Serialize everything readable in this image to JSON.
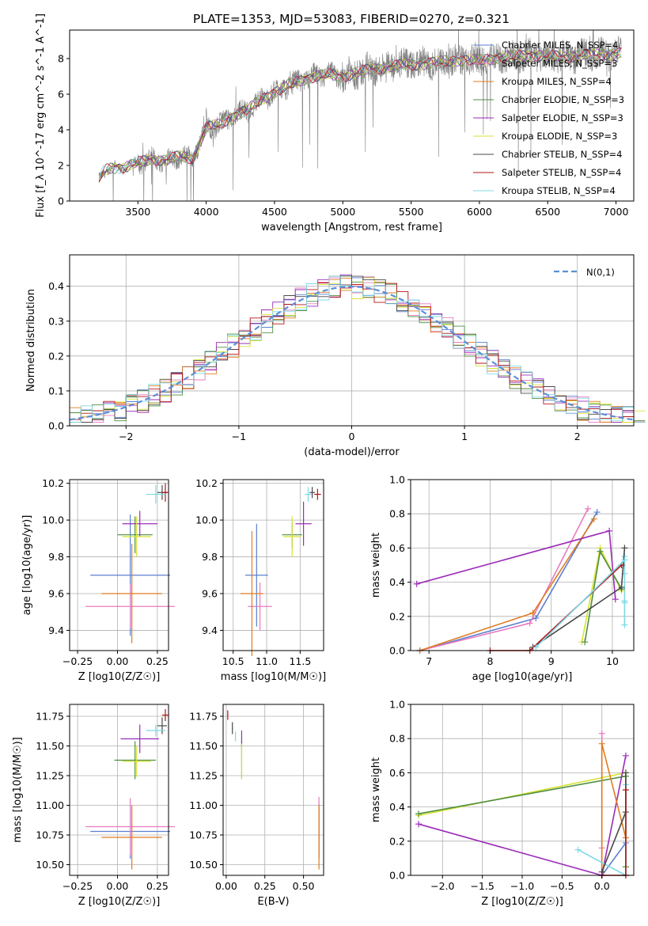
{
  "title": "PLATE=1353, MJD=53083, FIBERID=0270, z=0.321",
  "panels": {
    "spectrum": {
      "xlabel": "wavelength [Angstrom, rest frame]",
      "ylabel": "Flux [f_λ 10^-17 erg cm^-2 s^-1 A^-1]",
      "xticks": [
        "3500",
        "4000",
        "4500",
        "5000",
        "5500",
        "6000",
        "6500",
        "7000"
      ],
      "yticks": [
        "0",
        "2",
        "4",
        "6",
        "8"
      ]
    },
    "residuals": {
      "xlabel": "(data-model)/error",
      "ylabel": "Normed distribution",
      "legend": "N(0,1)",
      "xticks": [
        "−2",
        "−1",
        "0",
        "1",
        "2"
      ],
      "yticks": [
        "0.0",
        "0.1",
        "0.2",
        "0.3",
        "0.4"
      ]
    },
    "age_vs_Z": {
      "xlabel": "Z [log10(Z/Z☉)]",
      "ylabel": "age [log10(age/yr)]",
      "xticks": [
        "−0.25",
        "0.00",
        "0.25"
      ],
      "yticks": [
        "9.4",
        "9.6",
        "9.8",
        "10.0",
        "10.2"
      ]
    },
    "age_vs_mass": {
      "xlabel": "mass [log10(M/M☉)]",
      "xticks": [
        "10.5",
        "11.0",
        "11.5"
      ],
      "yticks": [
        "9.4",
        "9.6",
        "9.8",
        "10.0",
        "10.2"
      ]
    },
    "weight_vs_age": {
      "xlabel": "age [log10(age/yr)]",
      "ylabel": "mass weight",
      "xticks": [
        "7",
        "8",
        "9",
        "10"
      ],
      "yticks": [
        "0.0",
        "0.2",
        "0.4",
        "0.6",
        "0.8",
        "1.0"
      ]
    },
    "mass_vs_Z": {
      "xlabel": "Z [log10(Z/Z☉)]",
      "ylabel": "mass [log10(M/M☉)]",
      "xticks": [
        "−0.25",
        "0.00",
        "0.25"
      ],
      "yticks": [
        "10.50",
        "10.75",
        "11.00",
        "11.25",
        "11.50",
        "11.75"
      ]
    },
    "mass_vs_ebv": {
      "xlabel": "E(B-V)",
      "xticks": [
        "0.00",
        "0.25",
        "0.50"
      ],
      "yticks": [
        "10.50",
        "10.75",
        "11.00",
        "11.25",
        "11.50",
        "11.75"
      ]
    },
    "weight_vs_Z": {
      "xlabel": "Z [log10(Z/Z☉)]",
      "ylabel": "mass weight",
      "xticks": [
        "−2.0",
        "−1.5",
        "−1.0",
        "−0.5",
        "0.0"
      ],
      "yticks": [
        "0.0",
        "0.2",
        "0.4",
        "0.6",
        "0.8",
        "1.0"
      ]
    }
  },
  "colors": {
    "data": "#808080",
    "gaussian": "#5a8fd6",
    "grid": "#b0b0b0"
  },
  "chart_data": [
    {
      "type": "line",
      "panel": "spectrum",
      "title": "PLATE=1353, MJD=53083, FIBERID=0270, z=0.321",
      "xlabel": "wavelength [Angstrom, rest frame]",
      "ylabel": "Flux [f_λ 10^-17 erg cm^-2 s^-1 A^-1]",
      "xlim": [
        3000,
        7130
      ],
      "ylim": [
        0,
        9.6
      ],
      "grid": false,
      "legend_position": "right",
      "continuum_knots": {
        "x": [
          3215,
          3250,
          3300,
          3400,
          3500,
          3600,
          3700,
          3800,
          3900,
          4000,
          4100,
          4200,
          4300,
          4400,
          4500,
          4600,
          4700,
          4800,
          4900,
          5000,
          5200,
          5400,
          5600,
          5800,
          6000,
          6200,
          6400,
          6600,
          6800,
          7000
        ],
        "y": [
          1.2,
          1.7,
          1.85,
          1.9,
          2.15,
          2.35,
          2.3,
          2.5,
          2.4,
          4.1,
          4.3,
          4.8,
          5.1,
          5.7,
          6.1,
          6.5,
          6.8,
          7.0,
          7.1,
          7.0,
          7.4,
          7.6,
          7.7,
          7.9,
          7.9,
          8.1,
          8.2,
          8.1,
          8.2,
          8.3
        ]
      },
      "series": [
        {
          "name": "Chabrier MILES, N_SSP=4",
          "color": "#5b7fd1"
        },
        {
          "name": "Salpeter MILES, N_SSP=3",
          "color": "#e87ac0"
        },
        {
          "name": "Kroupa MILES, N_SSP=4",
          "color": "#e07b1f"
        },
        {
          "name": "Chabrier ELODIE, N_SSP=3",
          "color": "#4e8f40"
        },
        {
          "name": "Salpeter ELODIE, N_SSP=3",
          "color": "#9b2cb8"
        },
        {
          "name": "Kroupa ELODIE, N_SSP=3",
          "color": "#d8e234"
        },
        {
          "name": "Chabrier STELIB, N_SSP=4",
          "color": "#4a4a4a"
        },
        {
          "name": "Salpeter STELIB, N_SSP=4",
          "color": "#b51414"
        },
        {
          "name": "Kroupa STELIB, N_SSP=4",
          "color": "#7fd8e6"
        }
      ]
    },
    {
      "type": "bar",
      "panel": "residuals",
      "xlabel": "(data-model)/error",
      "ylabel": "Normed distribution",
      "xlim": [
        -2.5,
        2.5
      ],
      "ylim": [
        0,
        0.49
      ],
      "grid": true,
      "legend": "N(0,1)",
      "legend_position": "top-right",
      "bin_width": 0.1,
      "bin_start": -2.5,
      "gaussian": {
        "mean": 0,
        "sigma": 1
      },
      "envelope": [
        0.02,
        0.025,
        0.03,
        0.035,
        0.04,
        0.045,
        0.05,
        0.06,
        0.065,
        0.075,
        0.085,
        0.095,
        0.105,
        0.12,
        0.13,
        0.145,
        0.16,
        0.175,
        0.19,
        0.21,
        0.23,
        0.245,
        0.26,
        0.28,
        0.3,
        0.315,
        0.33,
        0.345,
        0.36,
        0.37,
        0.38,
        0.39,
        0.395,
        0.4,
        0.4,
        0.395,
        0.39,
        0.385,
        0.375,
        0.365,
        0.35,
        0.34,
        0.325,
        0.31,
        0.295,
        0.28,
        0.265,
        0.25,
        0.235,
        0.22,
        0.2
      ],
      "series_colors": [
        "#5b7fd1",
        "#e87ac0",
        "#e07b1f",
        "#4e8f40",
        "#9b2cb8",
        "#d8e234",
        "#4a4a4a",
        "#b51414",
        "#7fd8e6"
      ]
    },
    {
      "type": "scatter",
      "panel": "age_vs_Z",
      "xlabel": "Z [log10(Z/Z☉)]",
      "ylabel": "age [log10(age/yr)]",
      "xlim": [
        -0.3,
        0.32
      ],
      "ylim": [
        9.29,
        10.22
      ],
      "grid": true,
      "points": [
        {
          "color": "#5b7fd1",
          "x": 0.08,
          "xerr": 0.25,
          "y": 9.7,
          "yerr": 0.33
        },
        {
          "color": "#e87ac0",
          "x": 0.08,
          "xerr": 0.28,
          "y": 9.53,
          "yerr": 0.12
        },
        {
          "color": "#e07b1f",
          "x": 0.09,
          "xerr": 0.19,
          "y": 9.6,
          "yerr": 0.27
        },
        {
          "color": "#4e8f40",
          "x": 0.11,
          "xerr": 0.11,
          "y": 9.92,
          "yerr": 0.1
        },
        {
          "color": "#9b2cb8",
          "x": 0.14,
          "xerr": 0.11,
          "y": 9.98,
          "yerr": 0.07
        },
        {
          "color": "#d8e234",
          "x": 0.12,
          "xerr": 0.09,
          "y": 9.91,
          "yerr": 0.11
        },
        {
          "color": "#4a4a4a",
          "x": 0.28,
          "xerr": 0.03,
          "y": 10.15,
          "yerr": 0.04
        },
        {
          "color": "#b51414",
          "x": 0.3,
          "xerr": 0.02,
          "y": 10.15,
          "yerr": 0.05
        },
        {
          "color": "#7fd8e6",
          "x": 0.24,
          "xerr": 0.06,
          "y": 10.14,
          "yerr": 0.05
        }
      ]
    },
    {
      "type": "scatter",
      "panel": "age_vs_mass",
      "xlabel": "mass [log10(M/M☉)]",
      "xlim": [
        10.35,
        11.85
      ],
      "ylim": [
        9.29,
        10.22
      ],
      "grid": true,
      "points": [
        {
          "color": "#5b7fd1",
          "x": 10.85,
          "xerr": 0.17,
          "y": 9.7,
          "yerr": 0.28
        },
        {
          "color": "#e87ac0",
          "x": 10.9,
          "xerr": 0.18,
          "y": 9.53,
          "yerr": 0.13
        },
        {
          "color": "#e07b1f",
          "x": 10.78,
          "xerr": 0.17,
          "y": 9.6,
          "yerr": 0.34
        },
        {
          "color": "#4e8f40",
          "x": 11.38,
          "xerr": 0.15,
          "y": 9.92,
          "yerr": 0.07
        },
        {
          "color": "#9b2cb8",
          "x": 11.55,
          "xerr": 0.12,
          "y": 9.98,
          "yerr": 0.12
        },
        {
          "color": "#d8e234",
          "x": 11.38,
          "xerr": 0.13,
          "y": 9.91,
          "yerr": 0.11
        },
        {
          "color": "#4a4a4a",
          "x": 11.68,
          "xerr": 0.04,
          "y": 10.15,
          "yerr": 0.03
        },
        {
          "color": "#b51414",
          "x": 11.76,
          "xerr": 0.05,
          "y": 10.14,
          "yerr": 0.03
        },
        {
          "color": "#7fd8e6",
          "x": 11.62,
          "xerr": 0.05,
          "y": 10.14,
          "yerr": 0.04
        }
      ]
    },
    {
      "type": "line",
      "panel": "weight_vs_age",
      "xlabel": "age [log10(age/yr)]",
      "ylabel": "mass weight",
      "xlim": [
        6.7,
        10.35
      ],
      "ylim": [
        0,
        1
      ],
      "grid": true,
      "series": [
        {
          "color": "#7fd8e6",
          "x": [
            10.2,
            10.2,
            10.2,
            10.2,
            10.2
          ],
          "y": [
            0.15,
            0.28,
            0.45,
            0.55,
            0.29
          ]
        },
        {
          "color": "#5b7fd1",
          "x": [
            6.85,
            8.75,
            9.75
          ],
          "y": [
            0.0,
            0.19,
            0.81
          ]
        },
        {
          "color": "#e87ac0",
          "x": [
            6.85,
            8.65,
            9.6
          ],
          "y": [
            0.0,
            0.16,
            0.83
          ]
        },
        {
          "color": "#e07b1f",
          "x": [
            6.85,
            8.7,
            9.7
          ],
          "y": [
            0.0,
            0.22,
            0.77
          ]
        },
        {
          "color": "#9b2cb8",
          "x": [
            6.8,
            9.95,
            10.05
          ],
          "y": [
            0.39,
            0.7,
            0.3
          ]
        },
        {
          "color": "#d8e234",
          "x": [
            9.5,
            9.8,
            10.15
          ],
          "y": [
            0.05,
            0.6,
            0.35
          ]
        },
        {
          "color": "#4e8f40",
          "x": [
            9.55,
            9.8,
            10.15
          ],
          "y": [
            0.05,
            0.58,
            0.36
          ]
        },
        {
          "color": "#4a4a4a",
          "x": [
            8.7,
            10.15,
            10.2
          ],
          "y": [
            0.02,
            0.37,
            0.6
          ]
        },
        {
          "color": "#b51414",
          "x": [
            8.0,
            8.65,
            10.15
          ],
          "y": [
            0.0,
            0.0,
            0.5
          ]
        },
        {
          "color": "#7fd8e6",
          "x": [
            8.75,
            10.2
          ],
          "y": [
            0.02,
            0.53
          ]
        }
      ]
    },
    {
      "type": "scatter",
      "panel": "mass_vs_Z",
      "xlabel": "Z [log10(Z/Z☉)]",
      "ylabel": "mass [log10(M/M☉)]",
      "xlim": [
        -0.3,
        0.32
      ],
      "ylim": [
        10.41,
        11.85
      ],
      "grid": true,
      "points": [
        {
          "color": "#5b7fd1",
          "x": 0.08,
          "xerr": 0.25,
          "y": 10.78,
          "yerr": 0.23
        },
        {
          "color": "#e87ac0",
          "x": 0.08,
          "xerr": 0.28,
          "y": 10.82,
          "yerr": 0.24
        },
        {
          "color": "#e07b1f",
          "x": 0.09,
          "xerr": 0.19,
          "y": 10.73,
          "yerr": 0.27
        },
        {
          "color": "#4e8f40",
          "x": 0.11,
          "xerr": 0.13,
          "y": 11.38,
          "yerr": 0.16
        },
        {
          "color": "#9b2cb8",
          "x": 0.14,
          "xerr": 0.12,
          "y": 11.56,
          "yerr": 0.12
        },
        {
          "color": "#d8e234",
          "x": 0.12,
          "xerr": 0.09,
          "y": 11.37,
          "yerr": 0.13
        },
        {
          "color": "#4a4a4a",
          "x": 0.28,
          "xerr": 0.03,
          "y": 11.67,
          "yerr": 0.07
        },
        {
          "color": "#b51414",
          "x": 0.3,
          "xerr": 0.02,
          "y": 11.76,
          "yerr": 0.05
        },
        {
          "color": "#7fd8e6",
          "x": 0.24,
          "xerr": 0.06,
          "y": 11.63,
          "yerr": 0.05
        }
      ]
    },
    {
      "type": "scatter",
      "panel": "mass_vs_ebv",
      "xlabel": "E(B-V)",
      "xlim": [
        -0.02,
        0.63
      ],
      "ylim": [
        10.41,
        11.85
      ],
      "grid": true,
      "points": [
        {
          "color": "#5b7fd1",
          "x": 0.6,
          "xerr": 0.003,
          "y": 10.78,
          "yerr": 0.23
        },
        {
          "color": "#e87ac0",
          "x": 0.6,
          "xerr": 0.003,
          "y": 10.82,
          "yerr": 0.25
        },
        {
          "color": "#e07b1f",
          "x": 0.6,
          "xerr": 0.003,
          "y": 10.73,
          "yerr": 0.27
        },
        {
          "color": "#4e8f40",
          "x": 0.1,
          "xerr": 0.003,
          "y": 11.38,
          "yerr": 0.16
        },
        {
          "color": "#9b2cb8",
          "x": 0.1,
          "xerr": 0.003,
          "y": 11.56,
          "yerr": 0.07
        },
        {
          "color": "#d8e234",
          "x": 0.1,
          "xerr": 0.003,
          "y": 11.37,
          "yerr": 0.15
        },
        {
          "color": "#4a4a4a",
          "x": 0.04,
          "xerr": 0.003,
          "y": 11.65,
          "yerr": 0.05
        },
        {
          "color": "#b51414",
          "x": 0.01,
          "xerr": 0.003,
          "y": 11.76,
          "yerr": 0.04
        },
        {
          "color": "#7fd8e6",
          "x": 0.06,
          "xerr": 0.003,
          "y": 11.58,
          "yerr": 0.04
        }
      ]
    },
    {
      "type": "line",
      "panel": "weight_vs_Z",
      "xlabel": "Z [log10(Z/Z☉)]",
      "ylabel": "mass weight",
      "xlim": [
        -2.4,
        0.4
      ],
      "ylim": [
        0,
        1
      ],
      "grid": true,
      "series": [
        {
          "color": "#d8e234",
          "x": [
            -2.3,
            0.3,
            0.3
          ],
          "y": [
            0.35,
            0.6,
            0.05
          ]
        },
        {
          "color": "#4e8f40",
          "x": [
            -2.3,
            0.3,
            0.3
          ],
          "y": [
            0.36,
            0.58,
            0.05
          ]
        },
        {
          "color": "#9b2cb8",
          "x": [
            -2.3,
            0.0,
            0.3
          ],
          "y": [
            0.3,
            0.0,
            0.7
          ]
        },
        {
          "color": "#e87ac0",
          "x": [
            0.0,
            0.0,
            0.0
          ],
          "y": [
            0.0,
            0.83,
            0.16
          ]
        },
        {
          "color": "#e07b1f",
          "x": [
            0.0,
            0.0,
            0.3
          ],
          "y": [
            0.0,
            0.77,
            0.22
          ]
        },
        {
          "color": "#5b7fd1",
          "x": [
            0.0,
            0.3,
            0.3
          ],
          "y": [
            0.0,
            0.19,
            0.0
          ]
        },
        {
          "color": "#7fd8e6",
          "x": [
            -0.3,
            0.3,
            0.3
          ],
          "y": [
            0.15,
            0.0,
            0.53
          ]
        },
        {
          "color": "#4a4a4a",
          "x": [
            0.0,
            0.3,
            0.3
          ],
          "y": [
            0.02,
            0.37,
            0.6
          ]
        },
        {
          "color": "#b51414",
          "x": [
            0.0,
            0.3,
            0.3
          ],
          "y": [
            0.0,
            0.0,
            0.5
          ]
        }
      ]
    }
  ]
}
